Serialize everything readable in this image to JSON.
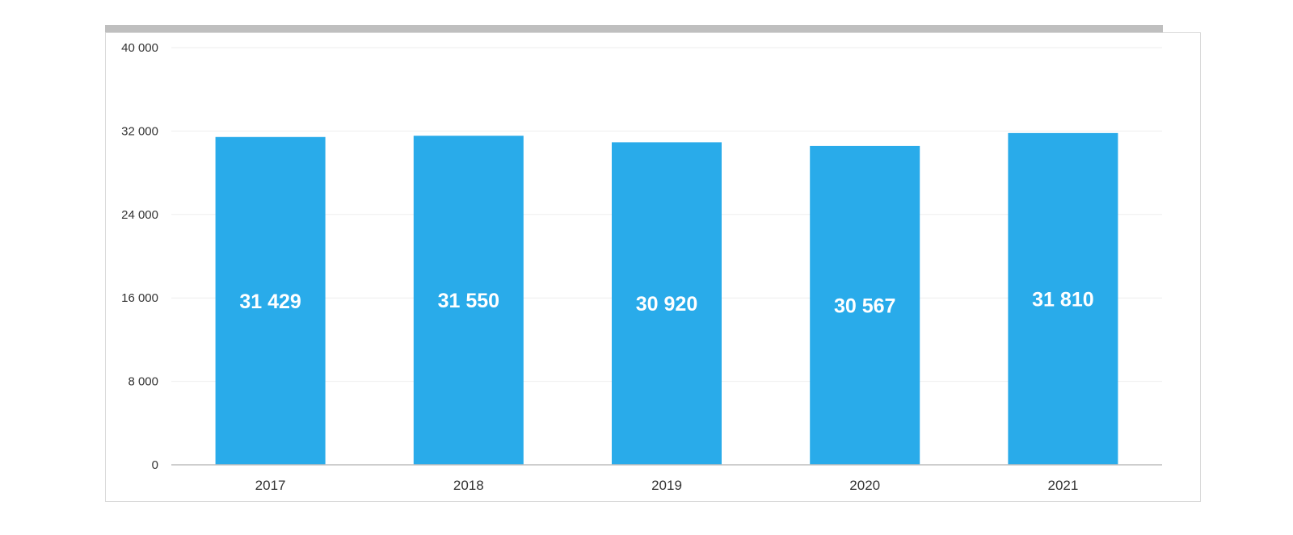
{
  "chart_data": {
    "type": "bar",
    "categories": [
      "2017",
      "2018",
      "2019",
      "2020",
      "2021"
    ],
    "values": [
      31429,
      31550,
      30920,
      30567,
      31810
    ],
    "data_labels": [
      "31 429",
      "31 550",
      "30 920",
      "30 567",
      "31 810"
    ],
    "y_ticks": [
      0,
      8000,
      16000,
      24000,
      32000,
      40000
    ],
    "y_tick_labels": [
      "0",
      "8 000",
      "16 000",
      "24 000",
      "32 000",
      "40 000"
    ],
    "ylim": [
      0,
      40000
    ],
    "grid": true,
    "legend": "none",
    "bar_color": "#29abea"
  }
}
